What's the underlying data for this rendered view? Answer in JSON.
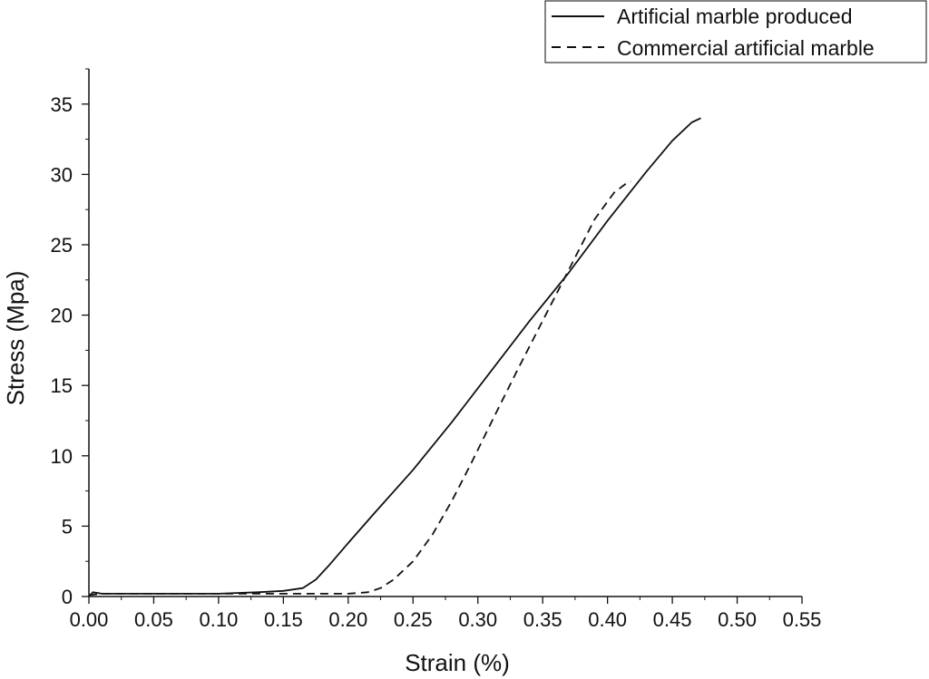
{
  "chart_data": {
    "type": "line",
    "title": "",
    "xlabel": "Strain (%)",
    "ylabel": "Stress (Mpa)",
    "xlim": [
      0.0,
      0.55
    ],
    "ylim": [
      0,
      37.5
    ],
    "grid": false,
    "legend_position": "top-right",
    "x_ticks": [
      "0.00",
      "0.05",
      "0.10",
      "0.15",
      "0.20",
      "0.25",
      "0.30",
      "0.35",
      "0.40",
      "0.45",
      "0.50",
      "0.55"
    ],
    "y_ticks": [
      "0",
      "5",
      "10",
      "15",
      "20",
      "25",
      "30",
      "35"
    ],
    "series": [
      {
        "name": "Artificial marble produced",
        "line_style": "solid",
        "color": "#111111",
        "x": [
          0.0,
          0.003,
          0.01,
          0.05,
          0.1,
          0.13,
          0.15,
          0.165,
          0.175,
          0.185,
          0.2,
          0.22,
          0.25,
          0.28,
          0.31,
          0.34,
          0.37,
          0.4,
          0.43,
          0.45,
          0.465,
          0.472
        ],
        "y": [
          0.0,
          0.3,
          0.2,
          0.2,
          0.2,
          0.3,
          0.4,
          0.6,
          1.2,
          2.2,
          3.8,
          5.9,
          9.0,
          12.4,
          16.0,
          19.6,
          23.0,
          26.7,
          30.2,
          32.4,
          33.7,
          34.0
        ]
      },
      {
        "name": "Commercial artificial marble",
        "line_style": "dashed",
        "color": "#111111",
        "x": [
          0.0,
          0.01,
          0.05,
          0.1,
          0.15,
          0.2,
          0.215,
          0.225,
          0.235,
          0.25,
          0.265,
          0.28,
          0.295,
          0.31,
          0.33,
          0.35,
          0.37,
          0.39,
          0.405,
          0.415,
          0.418
        ],
        "y": [
          0.1,
          0.2,
          0.2,
          0.2,
          0.2,
          0.2,
          0.3,
          0.6,
          1.2,
          2.5,
          4.4,
          6.8,
          9.5,
          12.3,
          16.0,
          19.6,
          23.2,
          26.8,
          28.7,
          29.4,
          29.5
        ]
      }
    ]
  }
}
